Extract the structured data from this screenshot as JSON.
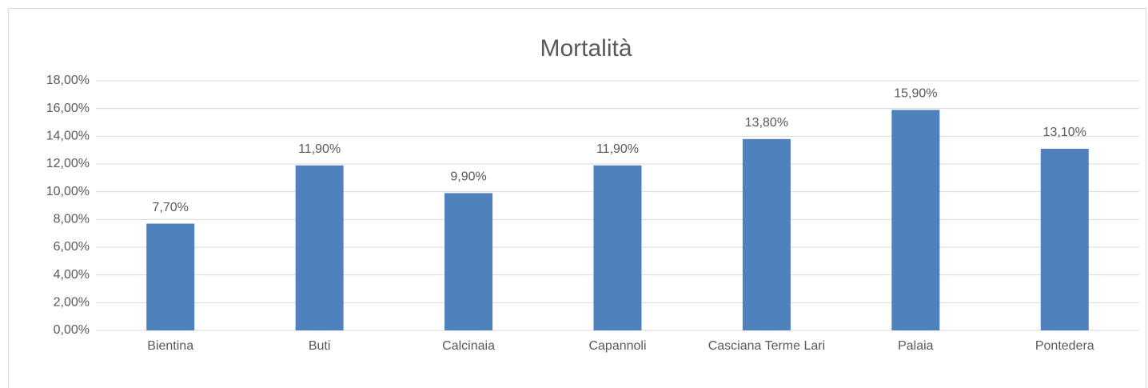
{
  "chart_data": {
    "type": "bar",
    "title": "Mortalità",
    "categories": [
      "Bientina",
      "Buti",
      "Calcinaia",
      "Capannoli",
      "Casciana Terme Lari",
      "Palaia",
      "Pontedera"
    ],
    "values": [
      7.7,
      11.9,
      9.9,
      11.9,
      13.8,
      15.9,
      13.1
    ],
    "value_labels": [
      "7,70%",
      "11,90%",
      "9,90%",
      "11,90%",
      "13,80%",
      "15,90%",
      "13,10%"
    ],
    "color": "#4f81bd",
    "ylim": [
      0,
      18
    ],
    "yticks": [
      {
        "value": 0,
        "label": "0,00%"
      },
      {
        "value": 2,
        "label": "2,00%"
      },
      {
        "value": 4,
        "label": "4,00%"
      },
      {
        "value": 6,
        "label": "6,00%"
      },
      {
        "value": 8,
        "label": "8,00%"
      },
      {
        "value": 10,
        "label": "10,00%"
      },
      {
        "value": 12,
        "label": "12,00%"
      },
      {
        "value": 14,
        "label": "14,00%"
      },
      {
        "value": 16,
        "label": "16,00%"
      },
      {
        "value": 18,
        "label": "18,00%"
      }
    ],
    "grid": true
  }
}
